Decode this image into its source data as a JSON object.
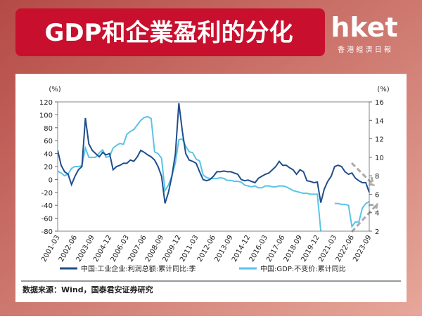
{
  "brand": {
    "name": "hket",
    "sub": "香 港 經 濟 日 報"
  },
  "chart_data": {
    "type": "line",
    "title": "GDP和企業盈利的分化",
    "y_unit": "(%)",
    "y2_unit": "(%)",
    "source": "数据来源：Wind，国泰君安证券研究",
    "categories": [
      "2001-03",
      null,
      null,
      null,
      null,
      "2002-06",
      null,
      null,
      null,
      null,
      "2003-09",
      null,
      null,
      null,
      null,
      "2004-12",
      null,
      null,
      null,
      null,
      "2006-03",
      null,
      null,
      null,
      null,
      "2007-06",
      null,
      null,
      null,
      null,
      "2008-09",
      null,
      null,
      null,
      null,
      "2009-12",
      null,
      null,
      null,
      null,
      "2011-03",
      null,
      null,
      null,
      null,
      "2012-06",
      null,
      null,
      null,
      null,
      "2013-09",
      null,
      null,
      null,
      null,
      "2014-12",
      null,
      null,
      null,
      null,
      "2016-03",
      null,
      null,
      null,
      null,
      "2017-06",
      null,
      null,
      null,
      null,
      "2018-09",
      null,
      null,
      null,
      null,
      "2019-12",
      null,
      null,
      null,
      null,
      "2021-03",
      null,
      null,
      null,
      null,
      "2022-06",
      null,
      null,
      null,
      null,
      "2023-09"
    ],
    "series": [
      {
        "name": "中国:工业企业:利润总额:累计同比:季",
        "color": "#1f4e8c",
        "axis": "y",
        "values": [
          45,
          22,
          12,
          8,
          -8,
          5,
          15,
          20,
          95,
          55,
          45,
          40,
          35,
          42,
          38,
          40,
          15,
          20,
          22,
          25,
          25,
          30,
          28,
          35,
          45,
          42,
          38,
          35,
          30,
          20,
          5,
          -37,
          -20,
          5,
          40,
          118,
          75,
          40,
          30,
          28,
          25,
          12,
          0,
          -2,
          0,
          5,
          12,
          12,
          13,
          12,
          12,
          10,
          8,
          0,
          -2,
          -1,
          -3,
          -5,
          2,
          5,
          8,
          10,
          15,
          20,
          28,
          22,
          22,
          18,
          15,
          8,
          15,
          12,
          -2,
          -3,
          -5,
          -4,
          -36,
          -15,
          -3,
          5,
          20,
          22,
          20,
          12,
          8,
          10,
          2,
          -2,
          -5,
          -5,
          -20
        ]
      },
      {
        "name": "中国:GDP:不变价:累计同比",
        "color": "#5bc3e8",
        "axis": "y2",
        "values": [
          8.5,
          8.3,
          8.0,
          8.2,
          8.8,
          9.0,
          9.0,
          9.1,
          11,
          10,
          10,
          10,
          10.5,
          10.8,
          10,
          10.1,
          11,
          11.3,
          11.5,
          11.4,
          12.5,
          12.8,
          13,
          13.5,
          14,
          14.3,
          14.4,
          14.2,
          10.6,
          10.4,
          9.9,
          6.4,
          7,
          8,
          9.4,
          11.9,
          12,
          11.2,
          10.6,
          10.5,
          9.8,
          9.6,
          8.1,
          7.8,
          7.7,
          7.7,
          7.7,
          7.8,
          7.7,
          7.5,
          7.5,
          7.4,
          7.4,
          7.3,
          7.0,
          6.9,
          6.8,
          6.9,
          6.7,
          6.7,
          6.9,
          6.9,
          6.8,
          6.8,
          6.9,
          6.9,
          6.8,
          6.6,
          6.4,
          6.3,
          6.2,
          6.1,
          6.1,
          6.0,
          6.0,
          6.0,
          2.0,
          null,
          null,
          null,
          5.0,
          5.0,
          4.9,
          4.9,
          4.8,
          2.5,
          3.0,
          3.0,
          4.5,
          5.0,
          5.2
        ]
      }
    ],
    "ylim": [
      -80,
      120
    ],
    "yticks": [
      -80,
      -60,
      -40,
      -20,
      0,
      20,
      40,
      60,
      80,
      100,
      120
    ],
    "y2lim": [
      2,
      16
    ],
    "y2ticks": [
      2,
      4,
      6,
      8,
      10,
      12,
      14,
      16
    ]
  }
}
